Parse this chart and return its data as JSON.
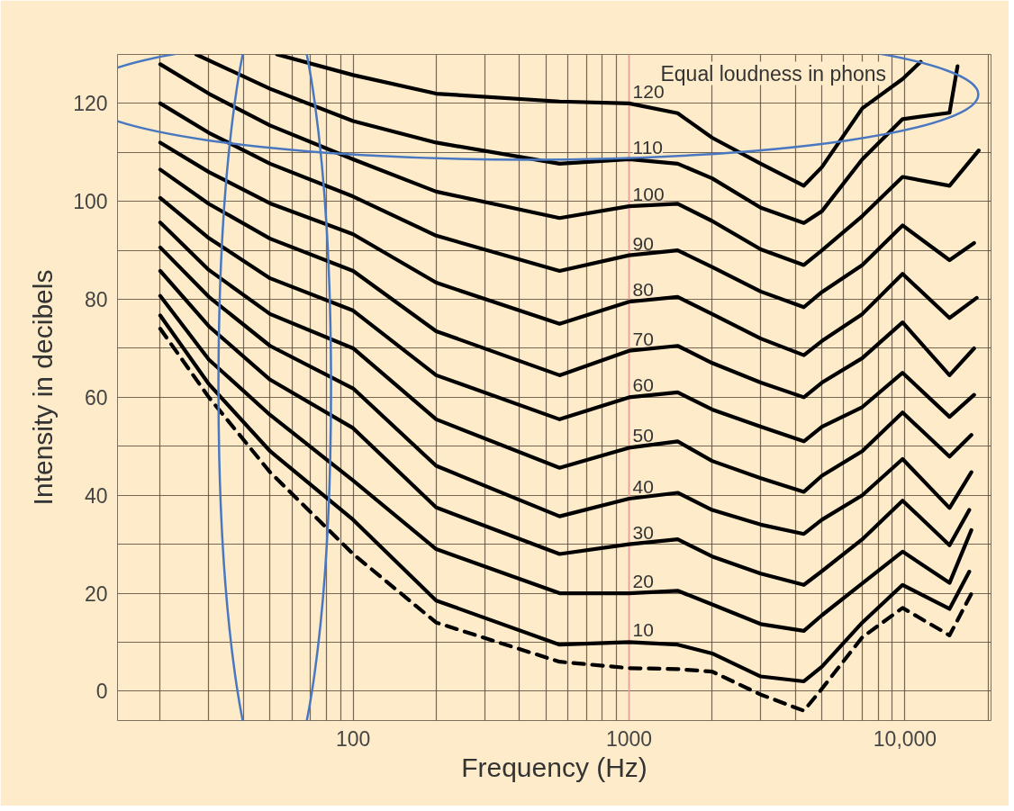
{
  "chart_data": {
    "type": "line",
    "xlabel": "Frequency (Hz)",
    "ylabel": "Intensity in decibels",
    "annotations": [
      "Equal loudness in phons"
    ],
    "log": "x",
    "xlim": [
      14,
      20500
    ],
    "ylim": [
      -6,
      130
    ],
    "xticks": [
      {
        "value": 20,
        "label": null
      },
      {
        "value": 30,
        "label": null
      },
      {
        "value": 40,
        "label": null
      },
      {
        "value": 50,
        "label": null
      },
      {
        "value": 60,
        "label": null
      },
      {
        "value": 70,
        "label": null
      },
      {
        "value": 80,
        "label": null
      },
      {
        "value": 90,
        "label": null
      },
      100,
      {
        "value": 200,
        "label": null
      },
      {
        "value": 300,
        "label": null
      },
      {
        "value": 400,
        "label": null
      },
      {
        "value": 500,
        "label": null
      },
      {
        "value": 600,
        "label": null
      },
      {
        "value": 700,
        "label": null
      },
      {
        "value": 800,
        "label": null
      },
      {
        "value": 900,
        "label": null
      },
      1000,
      {
        "value": 2000,
        "label": null
      },
      {
        "value": 3000,
        "label": null
      },
      {
        "value": 4000,
        "label": null
      },
      {
        "value": 5000,
        "label": null
      },
      {
        "value": 6000,
        "label": null
      },
      {
        "value": 7000,
        "label": null
      },
      {
        "value": 8000,
        "label": null
      },
      {
        "value": 9000,
        "label": null
      },
      {
        "value": 10000,
        "label": "10,000"
      },
      {
        "value": 20000,
        "label": null
      }
    ],
    "yticks": [
      0,
      {
        "value": 10,
        "label": null
      },
      20,
      {
        "value": 30,
        "label": null
      },
      40,
      {
        "value": 50,
        "label": null
      },
      60,
      {
        "value": 70,
        "label": null
      },
      80,
      {
        "value": 90,
        "label": null
      },
      100,
      {
        "value": 110,
        "label": null
      },
      120
    ],
    "grid": true,
    "marker": "none",
    "line_style": "solid",
    "ref_lines": [
      {
        "axis": "x",
        "value": 1000,
        "color": "#e8a0a0"
      }
    ],
    "series": [
      {
        "color": "#000000",
        "line_style": "dashed",
        "x": [
          20,
          30,
          50,
          100,
          200,
          560,
          1000,
          1500,
          2000,
          3000,
          4300,
          5000,
          7000,
          9800,
          14500,
          17400
        ],
        "values": [
          74,
          60,
          44.7,
          28,
          14,
          6,
          4.7,
          4.5,
          4,
          -0.7,
          -4,
          0.5,
          11,
          17,
          11.4,
          19.9
        ]
      },
      {
        "name": "10",
        "color": "#000000",
        "x": [
          20,
          30,
          50,
          100,
          200,
          560,
          1000,
          1500,
          2000,
          3000,
          4300,
          5000,
          7000,
          9800,
          14500,
          17100
        ],
        "values": [
          76.7,
          62.7,
          49,
          35,
          18.5,
          9.5,
          10,
          9.5,
          7.7,
          3,
          2,
          5,
          14,
          21.7,
          16.8,
          24.4
        ]
      },
      {
        "name": "20",
        "color": "#000000",
        "x": [
          20,
          30,
          50,
          100,
          200,
          560,
          1000,
          1500,
          2000,
          3000,
          4300,
          5000,
          7000,
          9800,
          14500,
          17400
        ],
        "values": [
          80.7,
          67.7,
          56.4,
          43,
          29,
          20,
          20,
          20.5,
          17.7,
          13.7,
          12.3,
          15.5,
          22,
          28.5,
          22.1,
          32.9
        ]
      },
      {
        "name": "30",
        "color": "#000000",
        "x": [
          20,
          30,
          50,
          100,
          200,
          560,
          1000,
          1500,
          2000,
          3000,
          4300,
          5000,
          7000,
          9800,
          14500,
          17100
        ],
        "values": [
          85.8,
          74.5,
          63.6,
          53.7,
          37.5,
          28,
          30,
          31,
          27.5,
          24,
          21.7,
          24.5,
          31,
          38.9,
          29.8,
          37
        ]
      },
      {
        "name": "40",
        "color": "#000000",
        "x": [
          20,
          30,
          50,
          100,
          200,
          560,
          1000,
          1500,
          2000,
          3000,
          4300,
          5000,
          7000,
          9800,
          14500,
          17400
        ],
        "values": [
          90.6,
          80.5,
          70.5,
          61.8,
          46,
          35.7,
          39.3,
          40.5,
          37,
          34,
          32.1,
          35,
          40,
          47.4,
          37.4,
          44.7
        ]
      },
      {
        "name": "50",
        "color": "#000000",
        "x": [
          20,
          30,
          50,
          100,
          200,
          560,
          1000,
          1500,
          2000,
          3000,
          4300,
          5000,
          7000,
          9800,
          14500,
          17400
        ],
        "values": [
          95.7,
          86,
          77,
          70,
          55.5,
          45.6,
          49.7,
          51,
          47,
          43.5,
          40.7,
          44,
          49,
          56.9,
          47.9,
          52.3
        ]
      },
      {
        "name": "60",
        "color": "#000000",
        "x": [
          20,
          30,
          50,
          100,
          200,
          560,
          1000,
          1500,
          2000,
          3000,
          4300,
          5000,
          7000,
          9800,
          14500,
          17800
        ],
        "values": [
          100.7,
          92.5,
          84.3,
          77.7,
          64.5,
          55.5,
          60,
          61,
          57.5,
          54,
          51,
          54,
          58,
          65,
          56,
          60.5
        ]
      },
      {
        "name": "70",
        "color": "#000000",
        "x": [
          20,
          30,
          50,
          100,
          200,
          560,
          1000,
          1500,
          2000,
          3000,
          4300,
          5000,
          7000,
          9800,
          14500,
          17800
        ],
        "values": [
          106.5,
          99.5,
          92.4,
          85.8,
          73.5,
          64.5,
          69.5,
          70.5,
          67,
          63,
          60,
          63,
          68,
          75.3,
          64.5,
          70
        ]
      },
      {
        "name": "80",
        "color": "#000000",
        "x": [
          20,
          30,
          50,
          100,
          200,
          560,
          1000,
          1500,
          2000,
          3000,
          4300,
          5000,
          7000,
          9800,
          14500,
          18200
        ],
        "values": [
          112,
          106,
          99.6,
          93.3,
          83.4,
          75,
          79.5,
          80.5,
          77,
          72,
          68.6,
          71.5,
          77,
          85.2,
          76.2,
          80.3
        ]
      },
      {
        "name": "90",
        "color": "#000000",
        "x": [
          20,
          30,
          50,
          100,
          200,
          560,
          1000,
          1500,
          2000,
          3000,
          4300,
          5000,
          7000,
          9800,
          14500,
          17800
        ],
        "values": [
          120,
          114,
          107.7,
          101,
          93,
          85.8,
          89,
          90,
          86.6,
          81.6,
          78.4,
          81.5,
          87,
          95.1,
          88,
          91.5
        ]
      },
      {
        "name": "100",
        "color": "#000000",
        "x": [
          20,
          30,
          50,
          100,
          200,
          560,
          1000,
          1500,
          2000,
          3000,
          4300,
          5000,
          7000,
          9800,
          14500,
          18500
        ],
        "values": [
          128,
          122,
          115.5,
          108.6,
          102,
          96.6,
          99,
          99.5,
          96,
          90.2,
          87,
          90,
          97,
          105,
          103.2,
          110.4
        ]
      },
      {
        "name": "110",
        "color": "#000000",
        "x": [
          27,
          50,
          100,
          200,
          560,
          1000,
          1500,
          2000,
          3000,
          4300,
          5000,
          7000,
          9800,
          14500,
          15500
        ],
        "values": [
          130,
          123,
          116.4,
          112,
          107.7,
          108.6,
          107.7,
          104.7,
          98.7,
          95.6,
          98,
          108.6,
          116.8,
          118.1,
          127.6
        ]
      },
      {
        "name": "120",
        "color": "#000000",
        "x": [
          53,
          100,
          200,
          560,
          1000,
          1500,
          2000,
          3000,
          4300,
          5000,
          7000,
          9800,
          11400
        ],
        "values": [
          130,
          125.8,
          122,
          120.4,
          120,
          118,
          113,
          107.7,
          103.2,
          107,
          119,
          125,
          128.5
        ]
      }
    ]
  }
}
